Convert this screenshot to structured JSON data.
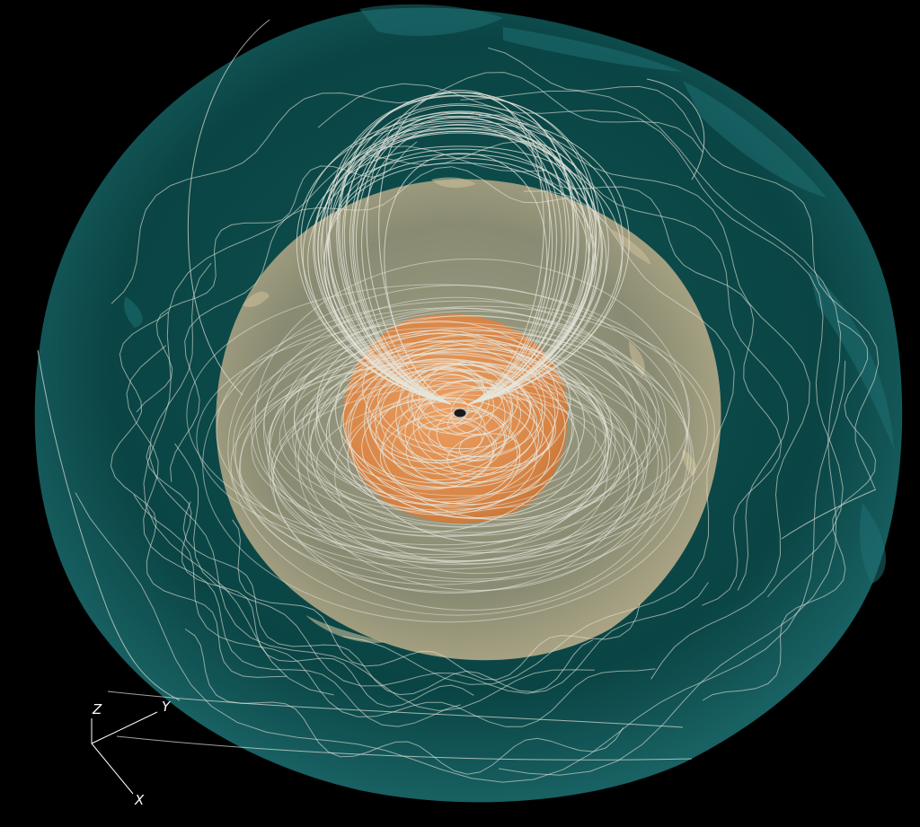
{
  "colors": {
    "background": "#000000",
    "outer_shell": "#0b4a4a",
    "outer_shell_highlight": "#1f6d70",
    "middle_shell": "#8a8a70",
    "middle_shell_highlight": "#b8ae8c",
    "inner_core": "#e08a48",
    "inner_core_highlight": "#f2a060",
    "streamline": "#e8e8e0",
    "axis": "#ffffff"
  },
  "axes_triad": {
    "z_label": "Z",
    "y_label": "Y",
    "x_label": "X"
  }
}
